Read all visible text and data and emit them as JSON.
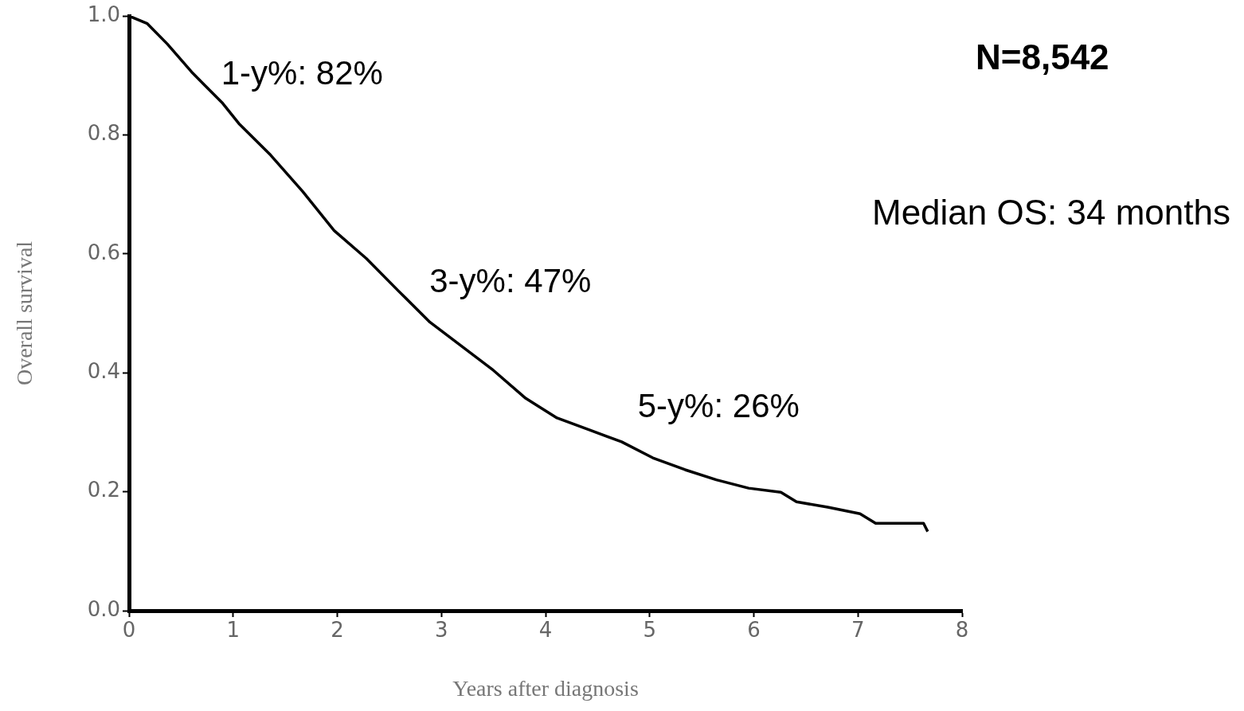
{
  "chart_data": {
    "type": "line",
    "xlabel": "Years after diagnosis",
    "ylabel": "Overall survival",
    "x": [
      0,
      0.176,
      0.367,
      0.6,
      0.9,
      1.055,
      1.36,
      1.667,
      1.97,
      2.28,
      2.585,
      2.89,
      3.2,
      3.5,
      3.81,
      4.11,
      4.42,
      4.73,
      5.03,
      5.34,
      5.64,
      5.95,
      6.26,
      6.41,
      6.71,
      7.02,
      7.17,
      7.63,
      7.67
    ],
    "series": [
      {
        "color": "#000000",
        "values": [
          1.0,
          0.987,
          0.953,
          0.906,
          0.853,
          0.819,
          0.766,
          0.705,
          0.639,
          0.592,
          0.538,
          0.485,
          0.444,
          0.404,
          0.357,
          0.324,
          0.304,
          0.284,
          0.257,
          0.237,
          0.22,
          0.206,
          0.199,
          0.183,
          0.174,
          0.163,
          0.147,
          0.147,
          0.133
        ]
      }
    ],
    "xlim": [
      0,
      8
    ],
    "xticks": [
      0,
      1,
      2,
      3,
      4,
      5,
      6,
      7,
      8
    ],
    "ylim": [
      0,
      1
    ],
    "yticks": [
      {
        "value": 0,
        "label": "0.0"
      },
      {
        "value": 0.2,
        "label": "0.2"
      },
      {
        "value": 0.4,
        "label": "0.4"
      },
      {
        "value": 0.6,
        "label": "0.6"
      },
      {
        "value": 0.8,
        "label": "0.8"
      },
      {
        "value": 1,
        "label": "1.0"
      }
    ],
    "grid": false,
    "legend": false,
    "marker": "none",
    "line_style": "solid",
    "annotations": [
      {
        "text": "1-y%: 82%",
        "x": 1,
        "y": 0.82
      },
      {
        "text": "3-y%: 47%",
        "x": 3,
        "y": 0.47
      },
      {
        "text": "5-y%: 26%",
        "x": 5,
        "y": 0.26
      },
      "N=8,542",
      "Median OS: 34 months"
    ]
  }
}
